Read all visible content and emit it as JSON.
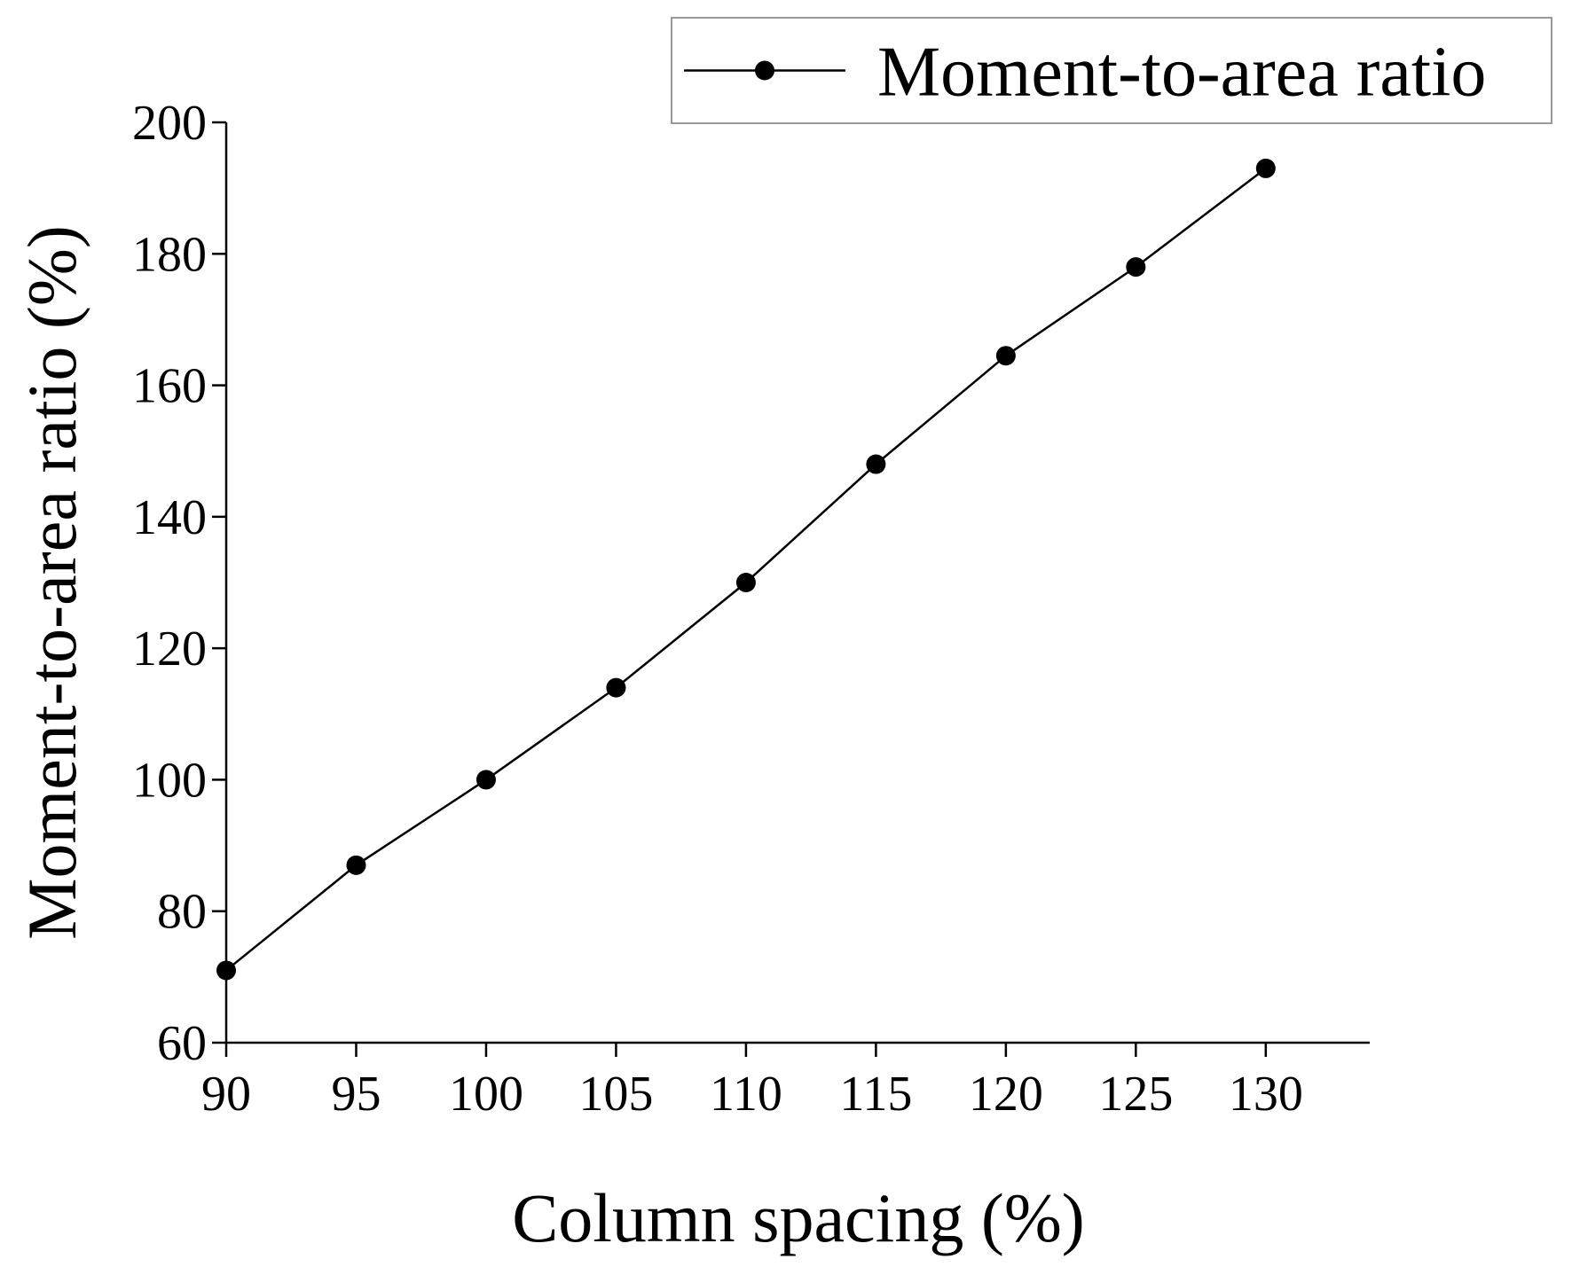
{
  "chart_data": {
    "type": "line",
    "x_label": "Column spacing (%)",
    "y_label": "Moment-to-area ratio (%)",
    "x": [
      90,
      95,
      100,
      105,
      110,
      115,
      120,
      125,
      130
    ],
    "series": [
      {
        "name": "Moment-to-area ratio",
        "color": "#000000",
        "values": [
          71,
          87,
          100,
          114,
          130,
          148,
          164.5,
          178,
          193
        ]
      }
    ],
    "xlim": [
      90,
      134
    ],
    "xticks": [
      90,
      95,
      100,
      105,
      110,
      115,
      120,
      125,
      130
    ],
    "ylim": [
      60,
      200
    ],
    "yticks": [
      60,
      80,
      100,
      120,
      140,
      160,
      180,
      200
    ],
    "grid": false,
    "legend": "top-right"
  }
}
